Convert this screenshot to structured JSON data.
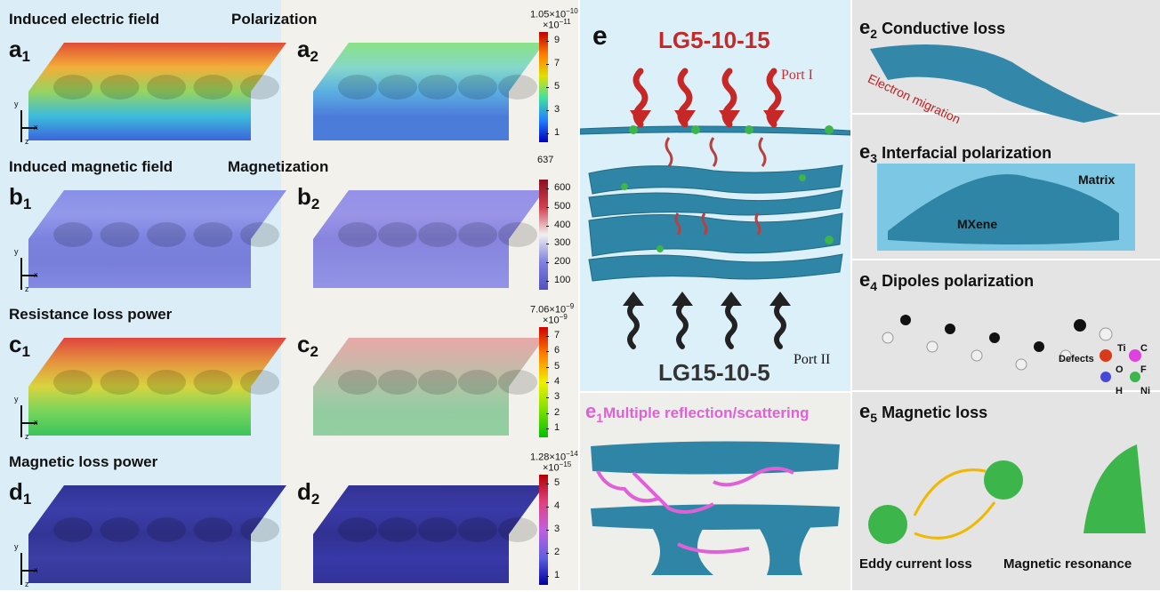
{
  "left": {
    "axes": {
      "y": "y",
      "x": "x",
      "z": "z"
    },
    "rows": [
      {
        "title1": "Induced electric field",
        "title2": "Polarization",
        "label1": "a",
        "sub1": "1",
        "label2": "a",
        "sub2": "2",
        "colorbar": {
          "max": "1.05×10",
          "max_exp": "−10",
          "scale": "×10",
          "scale_exp": "−11",
          "ticks": [
            9,
            7,
            5,
            3,
            1
          ]
        }
      },
      {
        "title1": "Induced magnetic field",
        "title2": "Magnetization",
        "label1": "b",
        "sub1": "1",
        "label2": "b",
        "sub2": "2",
        "colorbar": {
          "max": "637",
          "ticks": [
            600,
            500,
            400,
            300,
            200,
            100
          ]
        }
      },
      {
        "title1": "Resistance loss power",
        "label1": "c",
        "sub1": "1",
        "label2": "c",
        "sub2": "2",
        "colorbar": {
          "max": "7.06×10",
          "max_exp": "−9",
          "scale": "×10",
          "scale_exp": "−9",
          "ticks": [
            7,
            6,
            5,
            4,
            3,
            2,
            1
          ]
        }
      },
      {
        "title1": "Magnetic loss power",
        "label1": "d",
        "sub1": "1",
        "label2": "d",
        "sub2": "2",
        "colorbar": {
          "max": "1.28×10",
          "max_exp": "−14",
          "scale": "×10",
          "scale_exp": "−15",
          "ticks": [
            5,
            4,
            3,
            2,
            1
          ]
        }
      }
    ]
  },
  "e": {
    "label": "e",
    "top_sample": "LG5-10-15",
    "port1": "Port I",
    "bottom_sample": "LG15-10-5",
    "port2": "Port II"
  },
  "e1": {
    "label": "e",
    "sub": "1",
    "title": "Multiple reflection/scattering"
  },
  "e2": {
    "label": "e",
    "sub": "2",
    "title": "Conductive loss",
    "annotation": "Electron migration"
  },
  "e3": {
    "label": "e",
    "sub": "3",
    "title": "Interfacial polarization",
    "matrix": "Matrix",
    "mxene": "MXene"
  },
  "e4": {
    "label": "e",
    "sub": "4",
    "title": "Dipoles polarization",
    "defects": "Defects",
    "legend": [
      "Ti",
      "C",
      "O",
      "F",
      "H",
      "Ni"
    ]
  },
  "e5": {
    "label": "e",
    "sub": "5",
    "title": "Magnetic loss",
    "left_caption": "Eddy current loss",
    "right_caption": "Magnetic resonance"
  }
}
